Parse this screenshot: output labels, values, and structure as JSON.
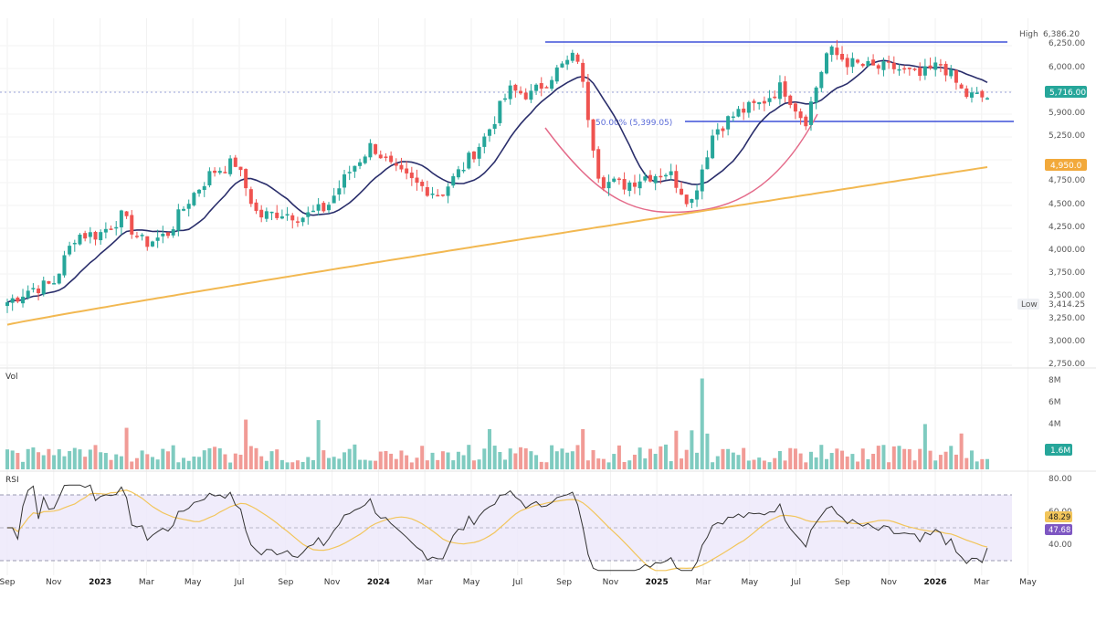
{
  "colors": {
    "up": "#26a69a",
    "down": "#ef5350",
    "vol_up": "#7fcbc0",
    "vol_down": "#f19b96",
    "ma_short": "#2a2e6b",
    "ma_long": "#f2b851",
    "level_line": "#3f51d8",
    "arc": "#e46b8a",
    "rsi_line": "#333333",
    "rsi_ma": "#f2c55b",
    "rsi_band": "#ede9fa"
  },
  "price_panel": {
    "high_tag": "High",
    "high_value": "6,386.20",
    "low_tag": "Low",
    "low_value": "3,414.25",
    "last_price": "5,716.00",
    "ma_long_value": "4,950.0",
    "fib_label": "50.00% (5,399.05)",
    "ticks": [
      "6,250.00",
      "6,000.00",
      "5,900.00",
      "5,250.00",
      "4,750.00",
      "4,500.00",
      "4,250.00",
      "4,000.00",
      "3,750.00",
      "3,500.00",
      "3,250.00",
      "3,000.00",
      "2,750.00"
    ]
  },
  "volume_panel": {
    "label": "Vol",
    "ticks": [
      "8M",
      "6M",
      "4M"
    ],
    "last_value": "1.6M"
  },
  "rsi_panel": {
    "label": "RSI",
    "ticks": [
      "80.00",
      "60.00",
      "40.00"
    ],
    "value_ma": "48.29",
    "value_rsi": "47.68"
  },
  "time_axis": [
    {
      "label": "Sep",
      "year": false
    },
    {
      "label": "Nov",
      "year": false
    },
    {
      "label": "2023",
      "year": true
    },
    {
      "label": "Mar",
      "year": false
    },
    {
      "label": "May",
      "year": false
    },
    {
      "label": "Jul",
      "year": false
    },
    {
      "label": "Sep",
      "year": false
    },
    {
      "label": "Nov",
      "year": false
    },
    {
      "label": "2024",
      "year": true
    },
    {
      "label": "Mar",
      "year": false
    },
    {
      "label": "May",
      "year": false
    },
    {
      "label": "Jul",
      "year": false
    },
    {
      "label": "Sep",
      "year": false
    },
    {
      "label": "Nov",
      "year": false
    },
    {
      "label": "2025",
      "year": true
    },
    {
      "label": "Mar",
      "year": false
    },
    {
      "label": "May",
      "year": false
    },
    {
      "label": "Jul",
      "year": false
    },
    {
      "label": "Sep",
      "year": false
    },
    {
      "label": "Nov",
      "year": false
    },
    {
      "label": "2026",
      "year": true
    },
    {
      "label": "Mar",
      "year": false
    },
    {
      "label": "May",
      "year": false
    }
  ],
  "chart_data": {
    "type": "candlestick",
    "interval": "weekly",
    "y_range": [
      2750,
      6400
    ],
    "resistance_level": 6250,
    "support_level": 5399.05,
    "high": 6386.2,
    "low": 3414.25,
    "anchors": [
      [
        "2022-09",
        3450
      ],
      [
        "2022-10",
        3600
      ],
      [
        "2022-11",
        3650
      ],
      [
        "2022-12",
        4200
      ],
      [
        "2023-01",
        4200
      ],
      [
        "2023-02",
        4400
      ],
      [
        "2023-03",
        4100
      ],
      [
        "2023-04",
        4200
      ],
      [
        "2023-05",
        4600
      ],
      [
        "2023-06",
        4900
      ],
      [
        "2023-07",
        5000
      ],
      [
        "2023-08",
        4400
      ],
      [
        "2023-09",
        4450
      ],
      [
        "2023-10",
        4400
      ],
      [
        "2023-11",
        4500
      ],
      [
        "2023-12",
        4900
      ],
      [
        "2024-01",
        5200
      ],
      [
        "2024-02",
        4900
      ],
      [
        "2024-03",
        4750
      ],
      [
        "2024-04",
        4650
      ],
      [
        "2024-05",
        4950
      ],
      [
        "2024-06",
        5300
      ],
      [
        "2024-07",
        5800
      ],
      [
        "2024-08",
        5750
      ],
      [
        "2024-09",
        6000
      ],
      [
        "2024-10",
        6200
      ],
      [
        "2024-11",
        4800
      ],
      [
        "2024-12",
        4750
      ],
      [
        "2025-01",
        4850
      ],
      [
        "2025-02",
        4900
      ],
      [
        "2025-03",
        4550
      ],
      [
        "2025-04",
        5350
      ],
      [
        "2025-05",
        5550
      ],
      [
        "2025-06",
        5650
      ],
      [
        "2025-07",
        5850
      ],
      [
        "2025-08",
        5450
      ],
      [
        "2025-09",
        6250
      ],
      [
        "2025-10",
        6100
      ],
      [
        "2025-11",
        6050
      ],
      [
        "2025-12",
        6050
      ],
      [
        "2026-01",
        5950
      ],
      [
        "2026-02",
        6100
      ],
      [
        "2026-03",
        5750
      ],
      [
        "2026-04",
        5716
      ]
    ],
    "volume_peak_m": 8.0,
    "rsi_latest": 47.68,
    "rsi_ma_latest": 48.29
  }
}
